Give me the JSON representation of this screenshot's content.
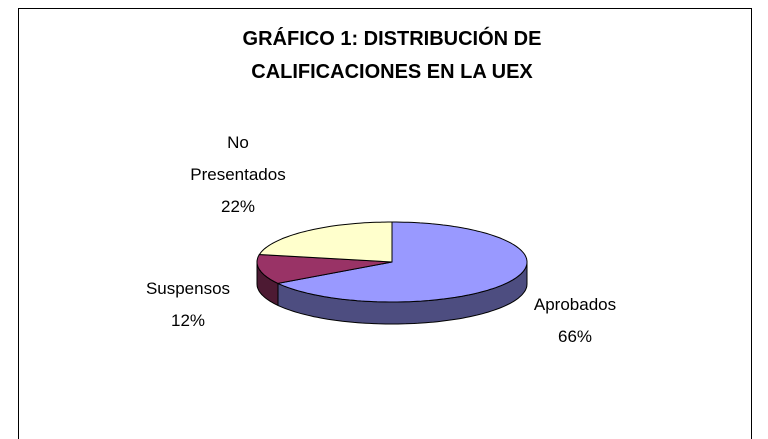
{
  "chart_data": {
    "type": "pie3d",
    "title": "GRÁFICO 1: DISTRIBUCIÓN DE CALIFICACIONES EN LA UEX",
    "categories": [
      "Aprobados",
      "Suspensos",
      "No Presentados"
    ],
    "values": [
      66,
      12,
      22
    ],
    "value_labels": [
      "66%",
      "12%",
      "22%"
    ],
    "colors": [
      "#9999ff",
      "#993366",
      "#ffffcc"
    ]
  }
}
